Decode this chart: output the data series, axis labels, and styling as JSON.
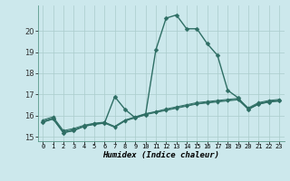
{
  "title": "",
  "xlabel": "Humidex (Indice chaleur)",
  "ylabel": "",
  "bg_color": "#cce8ec",
  "grid_color": "#aacccc",
  "line_color": "#2e6e64",
  "xlim": [
    -0.5,
    23.5
  ],
  "ylim": [
    14.8,
    21.2
  ],
  "yticks": [
    15,
    16,
    17,
    18,
    19,
    20
  ],
  "xtick_labels": [
    "0",
    "1",
    "2",
    "3",
    "4",
    "5",
    "6",
    "7",
    "8",
    "9",
    "10",
    "11",
    "12",
    "13",
    "14",
    "15",
    "16",
    "17",
    "18",
    "19",
    "20",
    "21",
    "22",
    "23"
  ],
  "series": [
    [
      15.7,
      15.85,
      15.2,
      15.3,
      15.5,
      15.6,
      15.65,
      16.9,
      16.3,
      15.9,
      16.05,
      19.1,
      20.6,
      20.75,
      20.1,
      20.1,
      19.4,
      18.85,
      17.2,
      16.85,
      16.3,
      16.55,
      16.65,
      16.7
    ],
    [
      15.7,
      15.85,
      15.2,
      15.3,
      15.5,
      15.6,
      15.65,
      15.45,
      15.75,
      15.9,
      16.05,
      16.15,
      16.25,
      16.35,
      16.45,
      16.55,
      16.6,
      16.65,
      16.7,
      16.75,
      16.3,
      16.55,
      16.65,
      16.7
    ],
    [
      15.75,
      15.9,
      15.25,
      15.35,
      15.5,
      15.62,
      15.68,
      15.48,
      15.78,
      15.93,
      16.08,
      16.18,
      16.28,
      16.38,
      16.48,
      16.58,
      16.63,
      16.68,
      16.73,
      16.78,
      16.33,
      16.58,
      16.68,
      16.73
    ],
    [
      15.8,
      15.95,
      15.3,
      15.4,
      15.55,
      15.65,
      15.7,
      15.5,
      15.8,
      15.95,
      16.1,
      16.2,
      16.32,
      16.42,
      16.52,
      16.62,
      16.67,
      16.72,
      16.77,
      16.82,
      16.37,
      16.62,
      16.72,
      16.77
    ]
  ]
}
